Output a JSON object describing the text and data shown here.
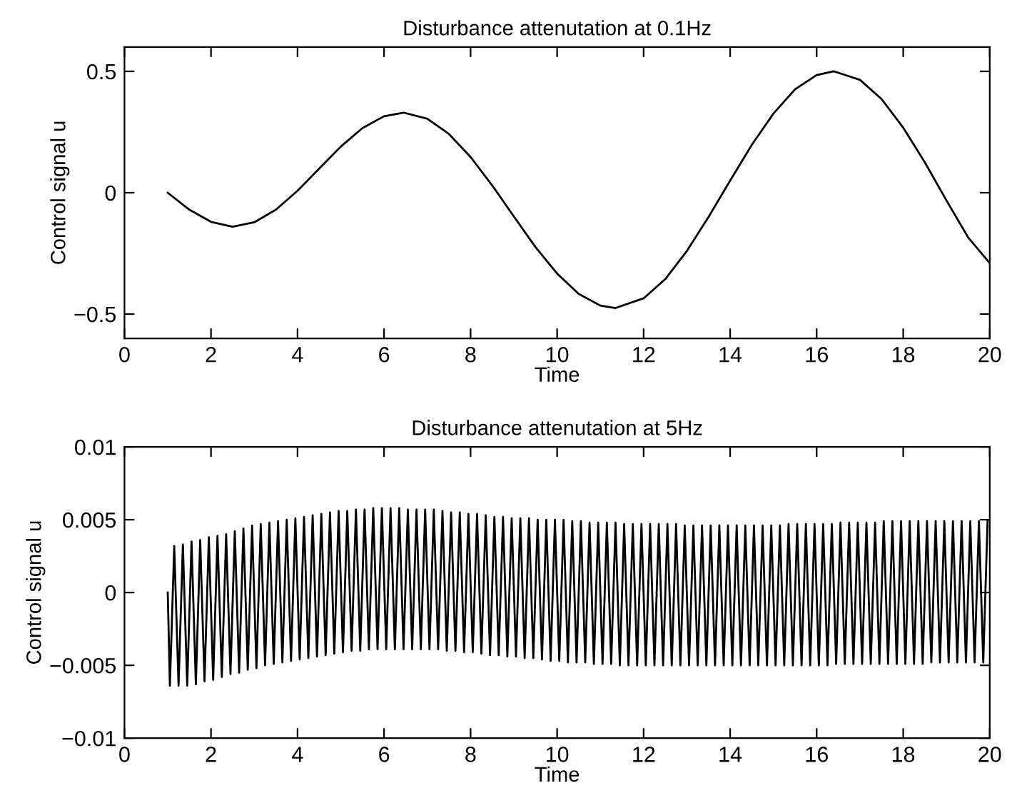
{
  "chart_data": [
    {
      "type": "line",
      "title": "Disturbance attenutation at 0.1Hz",
      "xlabel": "Time",
      "ylabel": "Control signal u",
      "color": "#000000",
      "x": [
        1,
        1.5,
        2,
        2.5,
        3,
        3.5,
        4,
        4.5,
        5,
        5.5,
        6,
        6.45,
        7,
        7.5,
        8,
        8.5,
        9,
        9.5,
        10,
        10.5,
        11,
        11.35,
        12,
        12.5,
        13,
        13.5,
        14,
        14.5,
        15,
        15.5,
        16,
        16.4,
        17,
        17.5,
        18,
        18.5,
        19,
        19.5,
        20
      ],
      "values": [
        0,
        -0.07,
        -0.12,
        -0.14,
        -0.122,
        -0.07,
        0.008,
        0.099,
        0.19,
        0.266,
        0.315,
        0.33,
        0.305,
        0.242,
        0.147,
        0.03,
        -0.098,
        -0.224,
        -0.333,
        -0.417,
        -0.465,
        -0.475,
        -0.435,
        -0.356,
        -0.24,
        -0.1,
        0.05,
        0.197,
        0.326,
        0.426,
        0.485,
        0.5,
        0.465,
        0.386,
        0.268,
        0.125,
        -0.032,
        -0.184,
        -0.29
      ],
      "xlim": [
        0,
        20
      ],
      "ylim": [
        -0.6,
        0.6
      ],
      "xticks": [
        0,
        2,
        4,
        6,
        8,
        10,
        12,
        14,
        16,
        18,
        20
      ],
      "yticks": [
        {
          "value": -0.5,
          "label": "−0.5"
        },
        0,
        0.5
      ]
    },
    {
      "type": "line",
      "title": "Disturbance attenutation at 5Hz",
      "xlabel": "Time",
      "ylabel": "Control signal u",
      "color": "#000000",
      "x": [
        1,
        1.05,
        1.15,
        1.25,
        1.35,
        1.45,
        1.55,
        1.65,
        1.75,
        1.85,
        1.95,
        2.05,
        2.15,
        2.25,
        2.35,
        2.45,
        2.55,
        2.65,
        2.75,
        2.85,
        2.95,
        3.05,
        3.15,
        3.25,
        3.35,
        3.45,
        3.55,
        3.65,
        3.75,
        3.85,
        3.95,
        4.05,
        4.15,
        4.25,
        4.35,
        4.45,
        4.55,
        4.65,
        4.75,
        4.85,
        4.95,
        5.05,
        5.15,
        5.25,
        5.35,
        5.45,
        5.55,
        5.65,
        5.75,
        5.85,
        5.95,
        6.05,
        6.15,
        6.25,
        6.35,
        6.45,
        6.55,
        6.65,
        6.75,
        6.85,
        6.95,
        7.05,
        7.15,
        7.25,
        7.35,
        7.45,
        7.55,
        7.65,
        7.75,
        7.85,
        7.95,
        8.05,
        8.15,
        8.25,
        8.35,
        8.45,
        8.55,
        8.65,
        8.75,
        8.85,
        8.95,
        9.05,
        9.15,
        9.25,
        9.35,
        9.45,
        9.55,
        9.65,
        9.75,
        9.85,
        9.95,
        10.05,
        10.15,
        10.25,
        10.35,
        10.45,
        10.55,
        10.65,
        10.75,
        10.85,
        10.95,
        11.05,
        11.15,
        11.25,
        11.35,
        11.45,
        11.55,
        11.65,
        11.75,
        11.85,
        11.95,
        12.05,
        12.15,
        12.25,
        12.35,
        12.45,
        12.55,
        12.65,
        12.75,
        12.85,
        12.95,
        13.05,
        13.15,
        13.25,
        13.35,
        13.45,
        13.55,
        13.65,
        13.75,
        13.85,
        13.95,
        14.05,
        14.15,
        14.25,
        14.35,
        14.45,
        14.55,
        14.65,
        14.75,
        14.85,
        14.95,
        15.05,
        15.15,
        15.25,
        15.35,
        15.45,
        15.55,
        15.65,
        15.75,
        15.85,
        15.95,
        16.05,
        16.15,
        16.25,
        16.35,
        16.45,
        16.55,
        16.65,
        16.75,
        16.85,
        16.95,
        17.05,
        17.15,
        17.25,
        17.35,
        17.45,
        17.55,
        17.65,
        17.75,
        17.85,
        17.95,
        18.05,
        18.15,
        18.25,
        18.35,
        18.45,
        18.55,
        18.65,
        18.75,
        18.85,
        18.95,
        19.05,
        19.15,
        19.25,
        19.35,
        19.45,
        19.55,
        19.65,
        19.75,
        19.85,
        19.95
      ],
      "values": [
        0,
        -0.0064,
        0.0032,
        -0.0064,
        0.0033,
        -0.0064,
        0.0035,
        -0.0063,
        0.0036,
        -0.0061,
        0.0038,
        -0.006,
        0.0039,
        -0.0058,
        0.004,
        -0.0056,
        0.0042,
        -0.0055,
        0.0044,
        -0.0053,
        0.0046,
        -0.0052,
        0.0047,
        -0.005,
        0.0048,
        -0.0049,
        0.0049,
        -0.0048,
        0.005,
        -0.0047,
        0.0051,
        -0.0046,
        0.0052,
        -0.0045,
        0.0053,
        -0.0044,
        0.0054,
        -0.0043,
        0.0055,
        -0.0042,
        0.0056,
        -0.0041,
        0.0056,
        -0.004,
        0.0057,
        -0.004,
        0.0057,
        -0.0039,
        0.0058,
        -0.0039,
        0.0058,
        -0.0039,
        0.0058,
        -0.0039,
        0.0058,
        -0.0039,
        0.0057,
        -0.0039,
        0.0057,
        -0.0039,
        0.0057,
        -0.0039,
        0.0057,
        -0.0039,
        0.0056,
        -0.004,
        0.0055,
        -0.004,
        0.0055,
        -0.0041,
        0.0054,
        -0.0041,
        0.0054,
        -0.0042,
        0.0053,
        -0.0043,
        0.0052,
        -0.0043,
        0.0052,
        -0.0044,
        0.0051,
        -0.0044,
        0.0051,
        -0.0045,
        0.0051,
        -0.0045,
        0.005,
        -0.0046,
        0.005,
        -0.0047,
        0.005,
        -0.0047,
        0.005,
        -0.0048,
        0.0049,
        -0.0048,
        0.0049,
        -0.0048,
        0.0048,
        -0.0049,
        0.0048,
        -0.0049,
        0.0048,
        -0.0049,
        0.0048,
        -0.005,
        0.0047,
        -0.005,
        0.0047,
        -0.005,
        0.0047,
        -0.005,
        0.0047,
        -0.005,
        0.0047,
        -0.005,
        0.0047,
        -0.005,
        0.0047,
        -0.005,
        0.0046,
        -0.005,
        0.0046,
        -0.005,
        0.0046,
        -0.005,
        0.0046,
        -0.005,
        0.0046,
        -0.005,
        0.0046,
        -0.005,
        0.0046,
        -0.005,
        0.0046,
        -0.005,
        0.0046,
        -0.005,
        0.0046,
        -0.005,
        0.0046,
        -0.005,
        0.0046,
        -0.005,
        0.0047,
        -0.005,
        0.0047,
        -0.005,
        0.0047,
        -0.005,
        0.0047,
        -0.005,
        0.0047,
        -0.005,
        0.0047,
        -0.0049,
        0.0048,
        -0.0049,
        0.0048,
        -0.0049,
        0.0048,
        -0.0049,
        0.0048,
        -0.0049,
        0.0048,
        -0.0049,
        0.0049,
        -0.0049,
        0.0049,
        -0.0049,
        0.0049,
        -0.0049,
        0.0049,
        -0.0049,
        0.0049,
        -0.0049,
        0.0049,
        -0.0048,
        0.0049,
        -0.0048,
        0.0049,
        -0.0048,
        0.0049,
        -0.0048,
        0.0049,
        -0.0048,
        0.0049,
        -0.0048,
        0.0049,
        -0.0048,
        0.0049
      ],
      "xlim": [
        0,
        20
      ],
      "ylim": [
        -0.01,
        0.01
      ],
      "xticks": [
        0,
        2,
        4,
        6,
        8,
        10,
        12,
        14,
        16,
        18,
        20
      ],
      "yticks": [
        {
          "value": -0.01,
          "label": "−0.01"
        },
        {
          "value": -0.005,
          "label": "−0.005"
        },
        0,
        0.005,
        0.01
      ]
    }
  ]
}
